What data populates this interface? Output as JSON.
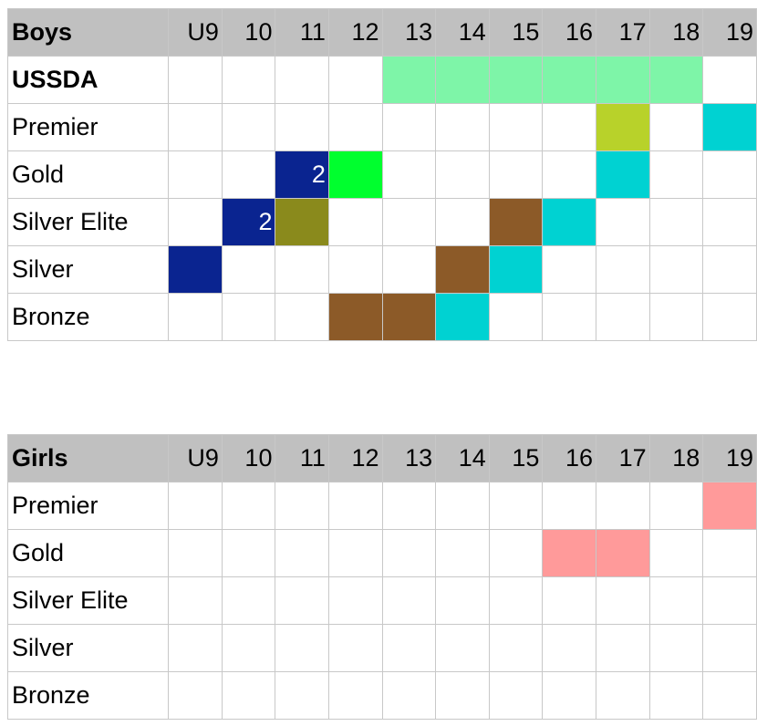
{
  "colors": {
    "header_bg": "#c0c0c0",
    "usssda_green": "#7ef5a8",
    "lime": "#b8d22a",
    "cyan": "#00d2d2",
    "navy": "#0a2490",
    "bright_green": "#00ff2e",
    "olive": "#8a8a1c",
    "brown": "#8c5a28",
    "pink": "#ff9a9a",
    "white": "#ffffff"
  },
  "boys": {
    "title": "Boys",
    "ages": [
      "U9",
      "10",
      "11",
      "12",
      "13",
      "14",
      "15",
      "16",
      "17",
      "18",
      "19"
    ],
    "rows": [
      {
        "label": "USSDA",
        "bold": true,
        "cells": [
          "",
          "",
          "",
          "",
          "#7ef5a8",
          "#7ef5a8",
          "#7ef5a8",
          "#7ef5a8",
          "#7ef5a8",
          "#7ef5a8",
          ""
        ],
        "notes": [
          "",
          "",
          "",
          "",
          "",
          "",
          "",
          "",
          "",
          "",
          ""
        ]
      },
      {
        "label": "Premier",
        "bold": false,
        "cells": [
          "",
          "",
          "",
          "",
          "",
          "",
          "",
          "",
          "#b8d22a",
          "",
          "#00d2d2"
        ],
        "notes": [
          "",
          "",
          "",
          "",
          "",
          "",
          "",
          "",
          "",
          "",
          ""
        ]
      },
      {
        "label": "Gold",
        "bold": false,
        "cells": [
          "",
          "",
          "#0a2490",
          "#00ff2e",
          "",
          "",
          "",
          "",
          "#00d2d2",
          "",
          ""
        ],
        "notes": [
          "",
          "",
          "2",
          "",
          "",
          "",
          "",
          "",
          "",
          "",
          ""
        ]
      },
      {
        "label": "Silver Elite",
        "bold": false,
        "cells": [
          "",
          "#0a2490",
          "#8a8a1c",
          "",
          "",
          "",
          "#8c5a28",
          "#00d2d2",
          "",
          "",
          ""
        ],
        "notes": [
          "",
          "2",
          "",
          "",
          "",
          "",
          "",
          "",
          "",
          "",
          ""
        ]
      },
      {
        "label": "Silver",
        "bold": false,
        "cells": [
          "#0a2490",
          "",
          "",
          "",
          "",
          "#8c5a28",
          "#00d2d2",
          "",
          "",
          "",
          ""
        ],
        "notes": [
          "",
          "",
          "",
          "",
          "",
          "",
          "",
          "",
          "",
          "",
          ""
        ]
      },
      {
        "label": "Bronze",
        "bold": false,
        "cells": [
          "",
          "",
          "",
          "#8c5a28",
          "#8c5a28",
          "#00d2d2",
          "",
          "",
          "",
          "",
          ""
        ],
        "notes": [
          "",
          "",
          "",
          "",
          "",
          "",
          "",
          "",
          "",
          "",
          ""
        ]
      }
    ]
  },
  "girls": {
    "title": "Girls",
    "ages": [
      "U9",
      "10",
      "11",
      "12",
      "13",
      "14",
      "15",
      "16",
      "17",
      "18",
      "19"
    ],
    "rows": [
      {
        "label": "Premier",
        "bold": false,
        "cells": [
          "",
          "",
          "",
          "",
          "",
          "",
          "",
          "",
          "",
          "",
          "#ff9a9a"
        ],
        "notes": [
          "",
          "",
          "",
          "",
          "",
          "",
          "",
          "",
          "",
          "",
          ""
        ]
      },
      {
        "label": "Gold",
        "bold": false,
        "cells": [
          "",
          "",
          "",
          "",
          "",
          "",
          "",
          "#ff9a9a",
          "#ff9a9a",
          "",
          ""
        ],
        "notes": [
          "",
          "",
          "",
          "",
          "",
          "",
          "",
          "",
          "",
          "",
          ""
        ]
      },
      {
        "label": "Silver Elite",
        "bold": false,
        "cells": [
          "",
          "",
          "",
          "",
          "",
          "",
          "",
          "",
          "",
          "",
          ""
        ],
        "notes": [
          "",
          "",
          "",
          "",
          "",
          "",
          "",
          "",
          "",
          "",
          ""
        ]
      },
      {
        "label": "Silver",
        "bold": false,
        "cells": [
          "",
          "",
          "",
          "",
          "",
          "",
          "",
          "",
          "",
          "",
          ""
        ],
        "notes": [
          "",
          "",
          "",
          "",
          "",
          "",
          "",
          "",
          "",
          "",
          ""
        ]
      },
      {
        "label": "Bronze",
        "bold": false,
        "cells": [
          "",
          "",
          "",
          "",
          "",
          "",
          "",
          "",
          "",
          "",
          ""
        ],
        "notes": [
          "",
          "",
          "",
          "",
          "",
          "",
          "",
          "",
          "",
          "",
          ""
        ]
      }
    ]
  }
}
